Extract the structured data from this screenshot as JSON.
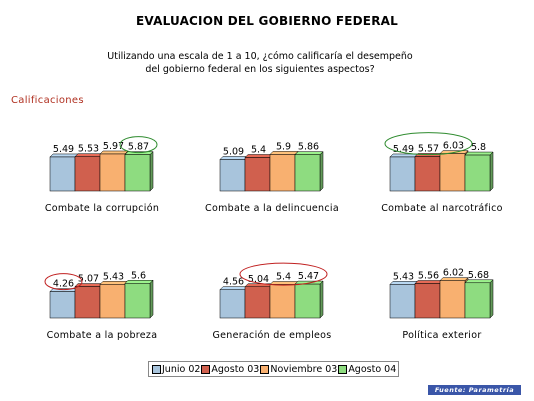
{
  "header": {
    "title": "EVALUACION DEL GOBIERNO FEDERAL",
    "subtitle_line1": "Utilizando una escala de 1 a 10, ¿cómo calificaría el desempeño",
    "subtitle_line2": "del gobierno federal en los siguientes aspectos?",
    "section_label": "Calificaciones"
  },
  "colors": {
    "series": [
      "#a8c4dc",
      "#d0604e",
      "#f8b070",
      "#8edc80"
    ],
    "title_accent": "#b03020",
    "circle_green": "#2e8b2e",
    "circle_red": "#c02020",
    "source_bg": "#3a56a8"
  },
  "source_text": "Fuente: Parametría",
  "chart_data": {
    "type": "bar",
    "ylim": [
      0,
      10
    ],
    "legend": {
      "position": "bottom",
      "entries": [
        "Junio 02",
        "Agosto 03",
        "Noviembre 03",
        "Agosto 04"
      ]
    },
    "panels": [
      {
        "label": "Combate la corrupción",
        "series": [
          {
            "name": "Junio 02",
            "value": 5.49,
            "label": "5.49"
          },
          {
            "name": "Agosto 03",
            "value": 5.53,
            "label": "5.53"
          },
          {
            "name": "Noviembre 03",
            "value": 5.97,
            "label": "5.97"
          },
          {
            "name": "Agosto 04",
            "value": 5.87,
            "label": "5.87"
          }
        ],
        "circled": {
          "indices": [
            3
          ],
          "color": "green"
        }
      },
      {
        "label": "Combate a la delincuencia",
        "series": [
          {
            "name": "Junio 02",
            "value": 5.09,
            "label": "5.09"
          },
          {
            "name": "Agosto 03",
            "value": 5.4,
            "label": "5.4"
          },
          {
            "name": "Noviembre 03",
            "value": 5.9,
            "label": "5.9"
          },
          {
            "name": "Agosto 04",
            "value": 5.86,
            "label": "5.86"
          }
        ]
      },
      {
        "label": "Combate al narcotráfico",
        "series": [
          {
            "name": "Junio 02",
            "value": 5.49,
            "label": "5.49"
          },
          {
            "name": "Agosto 03",
            "value": 5.57,
            "label": "5.57"
          },
          {
            "name": "Noviembre 03",
            "value": 6.03,
            "label": "6.03"
          },
          {
            "name": "Agosto 04",
            "value": 5.8,
            "label": "5.8"
          }
        ],
        "circled": {
          "indices": [
            0,
            1,
            2
          ],
          "color": "green"
        }
      },
      {
        "label": "Combate a la pobreza",
        "series": [
          {
            "name": "Junio 02",
            "value": 4.26,
            "label": "4.26"
          },
          {
            "name": "Agosto 03",
            "value": 5.07,
            "label": "5.07"
          },
          {
            "name": "Noviembre 03",
            "value": 5.43,
            "label": "5.43"
          },
          {
            "name": "Agosto 04",
            "value": 5.6,
            "label": "5.6"
          }
        ],
        "circled": {
          "indices": [
            0
          ],
          "color": "red"
        }
      },
      {
        "label": "Generación de empleos",
        "series": [
          {
            "name": "Junio 02",
            "value": 4.56,
            "label": "4.56"
          },
          {
            "name": "Agosto 03",
            "value": 5.04,
            "label": "5.04"
          },
          {
            "name": "Noviembre 03",
            "value": 5.4,
            "label": "5.4"
          },
          {
            "name": "Agosto 04",
            "value": 5.47,
            "label": "5.47"
          }
        ],
        "circled": {
          "indices": [
            1,
            2,
            3
          ],
          "color": "red"
        }
      },
      {
        "label": "Política exterior",
        "series": [
          {
            "name": "Junio 02",
            "value": 5.43,
            "label": "5.43"
          },
          {
            "name": "Agosto 03",
            "value": 5.56,
            "label": "5.56"
          },
          {
            "name": "Noviembre 03",
            "value": 6.02,
            "label": "6.02"
          },
          {
            "name": "Agosto 04",
            "value": 5.68,
            "label": "5.68"
          }
        ]
      }
    ]
  }
}
